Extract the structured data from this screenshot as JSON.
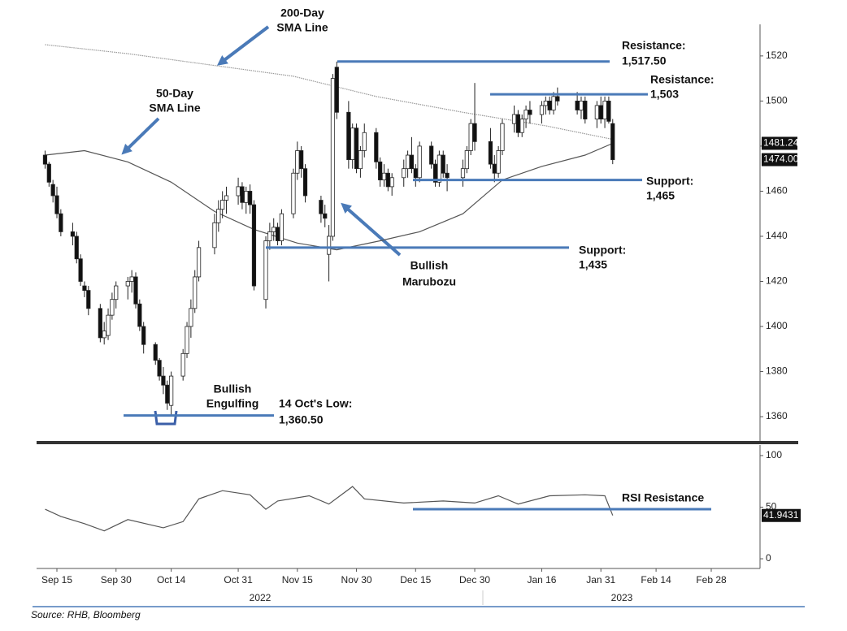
{
  "source": "Source: RHB, Bloomberg",
  "chart_data": [
    {
      "type": "candlestick",
      "dates": [
        "2022-09-12",
        "2022-09-13",
        "2022-09-14",
        "2022-09-15",
        "2022-09-16",
        "2022-09-19",
        "2022-09-20",
        "2022-09-21",
        "2022-09-22",
        "2022-09-23",
        "2022-09-26",
        "2022-09-27",
        "2022-09-28",
        "2022-09-29",
        "2022-09-30",
        "2022-10-03",
        "2022-10-04",
        "2022-10-05",
        "2022-10-06",
        "2022-10-07",
        "2022-10-10",
        "2022-10-11",
        "2022-10-12",
        "2022-10-13",
        "2022-10-14",
        "2022-10-17",
        "2022-10-18",
        "2022-10-19",
        "2022-10-20",
        "2022-10-21",
        "2022-10-25",
        "2022-10-26",
        "2022-10-27",
        "2022-10-28",
        "2022-10-31",
        "2022-11-01",
        "2022-11-02",
        "2022-11-03",
        "2022-11-04",
        "2022-11-07",
        "2022-11-08",
        "2022-11-09",
        "2022-11-10",
        "2022-11-11",
        "2022-11-14",
        "2022-11-15",
        "2022-11-16",
        "2022-11-17",
        "2022-11-21",
        "2022-11-22",
        "2022-11-23",
        "2022-11-24",
        "2022-11-25",
        "2022-11-28",
        "2022-11-29",
        "2022-11-30",
        "2022-12-01",
        "2022-12-02",
        "2022-12-05",
        "2022-12-06",
        "2022-12-07",
        "2022-12-08",
        "2022-12-09",
        "2022-12-12",
        "2022-12-13",
        "2022-12-14",
        "2022-12-15",
        "2022-12-16",
        "2022-12-19",
        "2022-12-20",
        "2022-12-21",
        "2022-12-22",
        "2022-12-23",
        "2022-12-27",
        "2022-12-28",
        "2022-12-29",
        "2022-12-30",
        "2023-01-03",
        "2023-01-04",
        "2023-01-05",
        "2023-01-06",
        "2023-01-09",
        "2023-01-10",
        "2023-01-11",
        "2023-01-12",
        "2023-01-13",
        "2023-01-16",
        "2023-01-17",
        "2023-01-18",
        "2023-01-19",
        "2023-01-20",
        "2023-01-25",
        "2023-01-26",
        "2023-01-27",
        "2023-01-30",
        "2023-01-31",
        "2023-02-01",
        "2023-02-02",
        "2023-02-03"
      ],
      "open": [
        1476,
        1472,
        1463,
        1458,
        1450,
        1442,
        1440,
        1430,
        1418,
        1416,
        1408,
        1395,
        1396,
        1405,
        1412,
        1418,
        1420,
        1422,
        1410,
        1400,
        1392,
        1385,
        1378,
        1374,
        1365,
        1378,
        1388,
        1400,
        1408,
        1422,
        1435,
        1446,
        1452,
        1456,
        1458,
        1462,
        1455,
        1460,
        1454,
        1412,
        1438,
        1442,
        1444,
        1438,
        1450,
        1468,
        1478,
        1470,
        1456,
        1450,
        1432,
        1440,
        1515,
        1495,
        1474,
        1488,
        1470,
        1478,
        1486,
        1473,
        1465,
        1468,
        1462,
        1466,
        1470,
        1476,
        1470,
        1466,
        1480,
        1472,
        1464,
        1476,
        1468,
        1466,
        1470,
        1478,
        1490,
        1482,
        1472,
        1468,
        1478,
        1490,
        1494,
        1486,
        1492,
        1496,
        1494,
        1498,
        1500,
        1496,
        1502,
        1500,
        1496,
        1500,
        1492,
        1498,
        1492,
        1500,
        1490
      ],
      "high": [
        1478,
        1473,
        1465,
        1462,
        1452,
        1446,
        1442,
        1432,
        1420,
        1418,
        1410,
        1402,
        1408,
        1415,
        1420,
        1422,
        1425,
        1424,
        1412,
        1402,
        1393,
        1386,
        1382,
        1376,
        1380,
        1390,
        1402,
        1412,
        1425,
        1438,
        1450,
        1456,
        1460,
        1462,
        1466,
        1464,
        1462,
        1463,
        1456,
        1440,
        1446,
        1448,
        1446,
        1452,
        1470,
        1482,
        1480,
        1472,
        1458,
        1454,
        1445,
        1512,
        1517.5,
        1500,
        1490,
        1490,
        1480,
        1490,
        1488,
        1475,
        1472,
        1470,
        1468,
        1474,
        1478,
        1484,
        1472,
        1482,
        1482,
        1474,
        1478,
        1478,
        1472,
        1474,
        1480,
        1492,
        1508,
        1488,
        1476,
        1480,
        1492,
        1498,
        1496,
        1494,
        1498,
        1500,
        1500,
        1502,
        1502,
        1504,
        1506,
        1504,
        1502,
        1502,
        1500,
        1502,
        1502,
        1502,
        1492
      ],
      "low": [
        1470,
        1462,
        1455,
        1448,
        1440,
        1436,
        1428,
        1418,
        1413,
        1405,
        1393,
        1392,
        1394,
        1403,
        1408,
        1412,
        1415,
        1408,
        1398,
        1388,
        1383,
        1376,
        1370,
        1363,
        1360.5,
        1376,
        1386,
        1395,
        1406,
        1420,
        1432,
        1442,
        1448,
        1450,
        1454,
        1452,
        1450,
        1450,
        1416,
        1408,
        1434,
        1438,
        1436,
        1436,
        1448,
        1465,
        1466,
        1455,
        1446,
        1444,
        1420,
        1438,
        1492,
        1470,
        1470,
        1468,
        1466,
        1475,
        1470,
        1462,
        1462,
        1460,
        1458,
        1462,
        1466,
        1468,
        1462,
        1464,
        1470,
        1462,
        1462,
        1466,
        1460,
        1462,
        1468,
        1476,
        1478,
        1470,
        1464,
        1466,
        1476,
        1486,
        1484,
        1484,
        1488,
        1490,
        1490,
        1494,
        1494,
        1494,
        1498,
        1494,
        1492,
        1490,
        1488,
        1490,
        1488,
        1490,
        1472
      ],
      "close": [
        1472,
        1464,
        1458,
        1450,
        1442,
        1440,
        1430,
        1420,
        1416,
        1408,
        1395,
        1398,
        1405,
        1412,
        1418,
        1420,
        1422,
        1410,
        1400,
        1392,
        1385,
        1378,
        1374,
        1366,
        1378,
        1388,
        1400,
        1408,
        1422,
        1435,
        1446,
        1452,
        1456,
        1458,
        1462,
        1455,
        1460,
        1454,
        1418,
        1438,
        1442,
        1444,
        1438,
        1450,
        1468,
        1478,
        1470,
        1458,
        1450,
        1448,
        1440,
        1510,
        1495,
        1474,
        1488,
        1470,
        1478,
        1486,
        1473,
        1465,
        1468,
        1462,
        1466,
        1470,
        1476,
        1470,
        1466,
        1480,
        1472,
        1464,
        1476,
        1468,
        1466,
        1470,
        1478,
        1490,
        1482,
        1472,
        1468,
        1478,
        1490,
        1494,
        1486,
        1492,
        1496,
        1494,
        1498,
        1500,
        1496,
        1502,
        1500,
        1496,
        1500,
        1492,
        1498,
        1492,
        1500,
        1491,
        1474
      ],
      "close_label": "1474.00",
      "ylim": [
        1348.5,
        1534
      ],
      "yticks": [
        1360,
        1380,
        1400,
        1420,
        1440,
        1460,
        1480,
        1500,
        1520
      ],
      "lines": [
        {
          "color": "#9a9a9a",
          "x": [
            "2022-09-12",
            "2022-10-03",
            "2022-10-24",
            "2022-11-14",
            "2022-12-05",
            "2022-12-27",
            "2023-01-17",
            "2023-02-03"
          ],
          "values": [
            1525,
            1521,
            1516,
            1511,
            1502,
            1495,
            1489,
            1483
          ]
        },
        {
          "color": "#555555",
          "x": [
            "2022-09-12",
            "2022-09-22",
            "2022-10-03",
            "2022-10-14",
            "2022-10-25",
            "2022-11-04",
            "2022-11-15",
            "2022-11-25",
            "2022-12-06",
            "2022-12-16",
            "2022-12-27",
            "2023-01-06",
            "2023-01-16",
            "2023-01-27",
            "2023-02-03"
          ],
          "values": [
            1476,
            1478,
            1473,
            1464,
            1451,
            1443,
            1437,
            1434,
            1438,
            1442,
            1450,
            1465,
            1471,
            1476,
            1481.24
          ]
        }
      ],
      "notes": [
        [
          "200-Day",
          "SMA Line"
        ],
        [
          "50-Day",
          "SMA Line"
        ],
        [
          "Bullish",
          "Marubozu"
        ],
        [
          "Bullish",
          "Engulfing"
        ]
      ],
      "levels": [
        {
          "label": "Resistance:",
          "value": 1517.5,
          "value_label": "1,517.50"
        },
        {
          "label": "Resistance:",
          "value": 1503,
          "value_label": "1,503"
        },
        {
          "label": "Support:",
          "value": 1465,
          "value_label": "1,465"
        },
        {
          "label": "Support:",
          "value": 1435,
          "value_label": "1,435"
        },
        {
          "label": "14 Oct's Low:",
          "value": 1360.5,
          "value_label": "1,360.50"
        }
      ]
    },
    {
      "type": "line",
      "color": "#555555",
      "x": [
        "2022-09-12",
        "2022-09-16",
        "2022-09-22",
        "2022-09-27",
        "2022-10-03",
        "2022-10-12",
        "2022-10-17",
        "2022-10-21",
        "2022-10-27",
        "2022-11-03",
        "2022-11-07",
        "2022-11-10",
        "2022-11-18",
        "2022-11-23",
        "2022-11-29",
        "2022-12-02",
        "2022-12-12",
        "2022-12-22",
        "2022-12-30",
        "2023-01-05",
        "2023-01-10",
        "2023-01-18",
        "2023-01-27",
        "2023-02-01",
        "2023-02-03"
      ],
      "values": [
        48,
        41,
        34,
        27,
        38,
        30,
        36,
        58,
        66,
        62,
        48,
        56,
        61,
        53,
        70,
        58,
        54,
        56,
        54,
        61,
        53,
        61,
        62,
        61,
        41.9431
      ],
      "ylim": [
        -9.4,
        110.2
      ],
      "yticks": [
        0,
        50,
        100
      ],
      "levels": [
        {
          "label": "RSI Resistance",
          "value": 48
        }
      ],
      "xticks": [
        {
          "value": "2022-09-15",
          "label": "Sep 15"
        },
        {
          "value": "2022-09-30",
          "label": "Sep 30"
        },
        {
          "value": "2022-10-14",
          "label": "Oct 14"
        },
        {
          "value": "2022-10-31",
          "label": "Oct 31"
        },
        {
          "value": "2022-11-15",
          "label": "Nov 15"
        },
        {
          "value": "2022-11-30",
          "label": "Nov 30"
        },
        {
          "value": "2022-12-15",
          "label": "Dec 15"
        },
        {
          "value": "2022-12-30",
          "label": "Dec 30"
        },
        {
          "value": "2023-01-16",
          "label": "Jan 16"
        },
        {
          "value": "2023-01-31",
          "label": "Jan 31"
        },
        {
          "value": "2023-02-14",
          "label": "Feb 14"
        },
        {
          "value": "2023-02-28",
          "label": "Feb 28"
        }
      ],
      "year_labels": [
        "2022",
        "2023"
      ]
    }
  ]
}
